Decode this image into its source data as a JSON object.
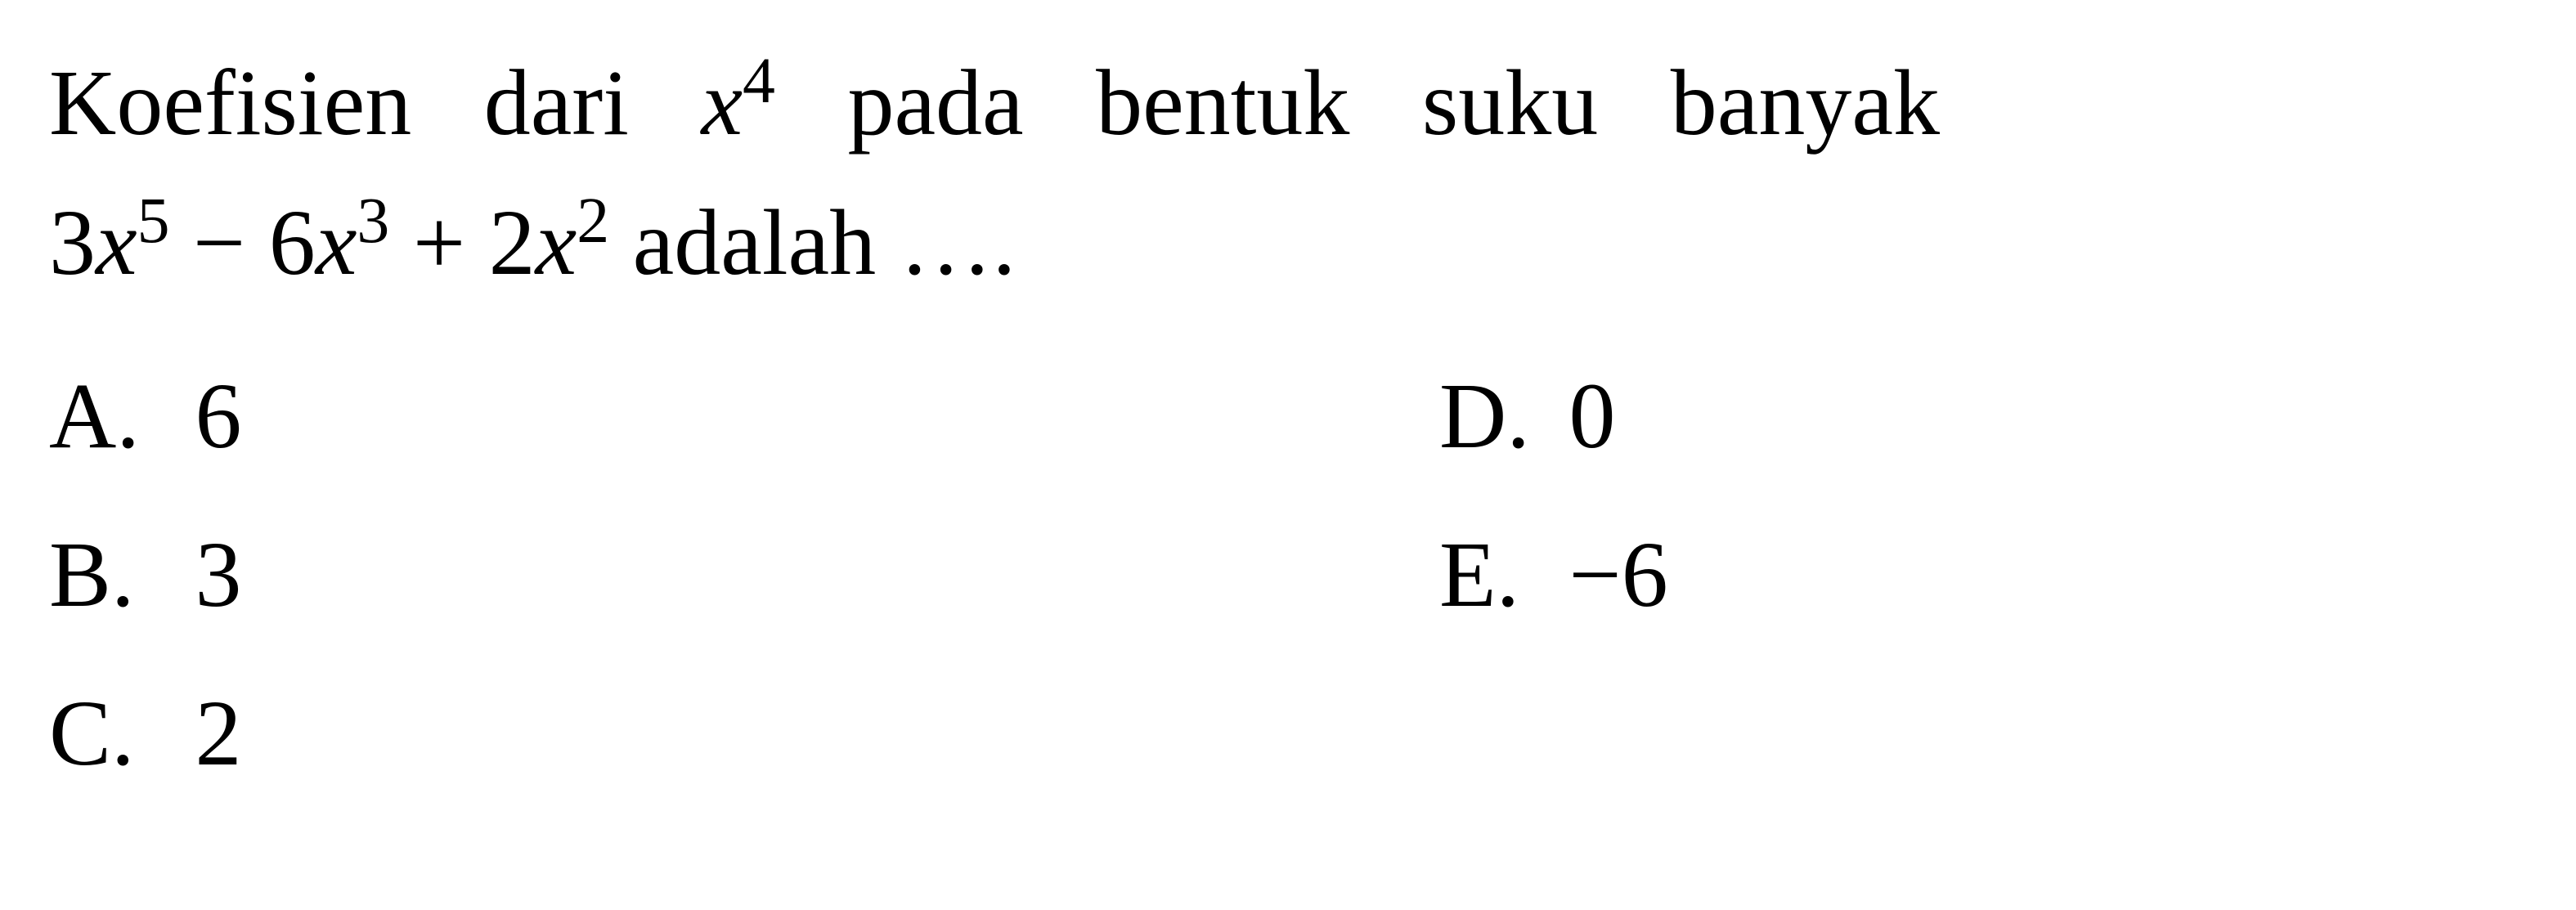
{
  "question": {
    "line1_part1": "Koefisien dari ",
    "line1_var": "x",
    "line1_exp": "4",
    "line1_part2": " pada bentuk suku banyak",
    "line2_coef1": "3",
    "line2_var1": "x",
    "line2_exp1": "5",
    "line2_op1": " − 6",
    "line2_var2": "x",
    "line2_exp2": "3",
    "line2_op2": " + 2",
    "line2_var3": "x",
    "line2_exp3": "2",
    "line2_part2": " adalah …."
  },
  "options": {
    "a": {
      "label": "A.",
      "value": "6"
    },
    "b": {
      "label": "B.",
      "value": "3"
    },
    "c": {
      "label": "C.",
      "value": "2"
    },
    "d": {
      "label": "D.",
      "value": "0"
    },
    "e": {
      "label": "E.",
      "value": "−6"
    }
  },
  "styling": {
    "font_size_pt": 86,
    "text_color": "#000000",
    "background_color": "#ffffff",
    "font_family": "Times New Roman"
  }
}
